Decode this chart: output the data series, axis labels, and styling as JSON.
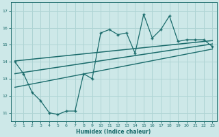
{
  "xlabel": "Humidex (Indice chaleur)",
  "ylabel": "",
  "bg_color": "#cde8e8",
  "grid_color": "#afd4d4",
  "line_color": "#1a6b6b",
  "xlim": [
    -0.5,
    23.5
  ],
  "ylim": [
    10.5,
    17.5
  ],
  "xticks": [
    0,
    1,
    2,
    3,
    4,
    5,
    6,
    7,
    8,
    9,
    10,
    11,
    12,
    13,
    14,
    15,
    16,
    17,
    18,
    19,
    20,
    21,
    22,
    23
  ],
  "yticks": [
    11,
    12,
    13,
    14,
    15,
    16,
    17
  ],
  "main_x": [
    0,
    1,
    2,
    3,
    4,
    5,
    6,
    7,
    8,
    9,
    10,
    11,
    12,
    13,
    14,
    15,
    16,
    17,
    18,
    19,
    20,
    21,
    22,
    23
  ],
  "main_y": [
    14.0,
    13.3,
    12.2,
    11.7,
    11.0,
    10.9,
    11.1,
    11.1,
    13.3,
    13.0,
    15.7,
    15.9,
    15.6,
    15.7,
    14.5,
    16.8,
    15.4,
    15.9,
    16.7,
    15.2,
    15.3,
    15.3,
    15.3,
    14.9
  ],
  "upper_line_x": [
    0,
    23
  ],
  "upper_line_y": [
    14.05,
    15.25
  ],
  "mid_line_x": [
    0,
    23
  ],
  "mid_line_y": [
    13.3,
    15.05
  ],
  "lower_line_x": [
    0,
    23
  ],
  "lower_line_y": [
    12.5,
    14.75
  ]
}
